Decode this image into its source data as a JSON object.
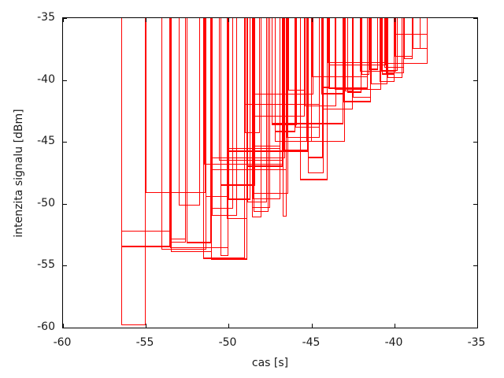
{
  "chart_data": {
    "type": "bar",
    "style": "open red boxes (gnuplot 'boxes'), each box spans a time interval and extends from the top of the plot down to its signal value",
    "title": "",
    "xlabel": "cas [s]",
    "ylabel": "intenzita signalu [dBm]",
    "xlim": [
      -60,
      -35
    ],
    "ylim": [
      -60,
      -35
    ],
    "x_ticks": [
      -60,
      -55,
      -50,
      -45,
      -40,
      -35
    ],
    "y_ticks": [
      -35,
      -40,
      -45,
      -50,
      -55,
      -60
    ],
    "grid": false,
    "legend": "none",
    "line_color": "#ff0000",
    "axis_color": "#000000",
    "background": "#ffffff",
    "box_format": [
      "t_start_s",
      "t_end_s",
      "signal_dbm",
      "thick_flag"
    ],
    "boxes": [
      [
        -56.5,
        -55.03,
        -59.82,
        0
      ],
      [
        -56.5,
        -53.55,
        -53.5,
        1
      ],
      [
        -56.5,
        -53.5,
        -52.25,
        0
      ],
      [
        -55.03,
        -51.4,
        -49.15,
        0
      ],
      [
        -53.55,
        -50.0,
        -53.6,
        0
      ],
      [
        -54.05,
        -51.35,
        -53.7,
        0
      ],
      [
        -53.5,
        -52.6,
        -52.85,
        0
      ],
      [
        -53.5,
        -52.6,
        -53.1,
        0
      ],
      [
        -53.5,
        -51.0,
        -53.87,
        0
      ],
      [
        -53.0,
        -51.75,
        -50.17,
        0
      ],
      [
        -52.55,
        -51.05,
        -53.22,
        1
      ],
      [
        -51.55,
        -49.0,
        -54.45,
        1
      ],
      [
        -51.05,
        -48.9,
        -54.5,
        1
      ],
      [
        -51.4,
        -50.0,
        -49.42,
        0
      ],
      [
        -51.0,
        -49.75,
        -50.37,
        0
      ],
      [
        -51.0,
        -49.5,
        -50.95,
        0
      ],
      [
        -50.5,
        -50.0,
        -54.2,
        0
      ],
      [
        -50.5,
        -48.4,
        -48.57,
        1
      ],
      [
        -50.0,
        -48.7,
        -49.7,
        1
      ],
      [
        -48.9,
        -47.7,
        -49.9,
        0
      ],
      [
        -48.5,
        -47.6,
        -50.62,
        0
      ],
      [
        -50.1,
        -48.9,
        -51.2,
        0
      ],
      [
        -48.6,
        -48.0,
        -51.1,
        0
      ],
      [
        -48.6,
        -47.5,
        -50.35,
        0
      ],
      [
        -48.55,
        -46.9,
        -49.65,
        0
      ],
      [
        -48.6,
        -46.4,
        -49.2,
        0
      ],
      [
        -51.5,
        -46.75,
        -46.85,
        0
      ],
      [
        -50.0,
        -46.9,
        -45.55,
        0
      ],
      [
        -50.0,
        -45.2,
        -45.8,
        1
      ],
      [
        -51.0,
        -46.6,
        -46.3,
        0
      ],
      [
        -50.6,
        -46.7,
        -46.52,
        0
      ],
      [
        -48.9,
        -46.75,
        -47.05,
        1
      ],
      [
        -51.0,
        -46.5,
        -47.28,
        0
      ],
      [
        -49.0,
        -48.1,
        -44.3,
        0
      ],
      [
        -48.6,
        -46.9,
        -45.4,
        0
      ],
      [
        -48.6,
        -44.9,
        -41.2,
        0
      ],
      [
        -49.0,
        -44.5,
        -42.0,
        0
      ],
      [
        -48.6,
        -45.4,
        -42.95,
        0
      ],
      [
        -47.4,
        -43.1,
        -43.57,
        1
      ],
      [
        -47.4,
        -45.9,
        -43.67,
        0
      ],
      [
        -47.2,
        -46.0,
        -44.2,
        1
      ],
      [
        -47.2,
        -45.0,
        -44.96,
        0
      ],
      [
        -46.75,
        -46.5,
        -51.05,
        0
      ],
      [
        -46.7,
        -45.2,
        -45.72,
        1
      ],
      [
        -46.4,
        -45.4,
        -40.85,
        0
      ],
      [
        -46.5,
        -44.5,
        -44.7,
        0
      ],
      [
        -46.0,
        -44.5,
        -43.85,
        0
      ],
      [
        -45.7,
        -44.05,
        -48.1,
        1
      ],
      [
        -45.2,
        -44.3,
        -46.3,
        1
      ],
      [
        -45.2,
        -44.25,
        -47.5,
        0
      ],
      [
        -45.3,
        -43.0,
        -45.0,
        0
      ],
      [
        -45.4,
        -43.5,
        -42.1,
        0
      ],
      [
        -45.0,
        -41.6,
        -39.78,
        0
      ],
      [
        -44.4,
        -43.0,
        -41.15,
        1
      ],
      [
        -44.4,
        -43.9,
        -40.68,
        1
      ],
      [
        -44.0,
        -41.6,
        -40.75,
        1
      ],
      [
        -44.3,
        -42.5,
        -42.35,
        0
      ],
      [
        -44.05,
        -40.55,
        -38.62,
        0
      ],
      [
        -44.0,
        -40.5,
        -38.8,
        0
      ],
      [
        -43.6,
        -40.8,
        -40.77,
        0
      ],
      [
        -43.1,
        -41.4,
        -41.83,
        1
      ],
      [
        -42.85,
        -42.0,
        -41.03,
        1
      ],
      [
        -43.0,
        -42.5,
        -40.9,
        0
      ],
      [
        -42.5,
        -41.4,
        -41.45,
        0
      ],
      [
        -42.1,
        -39.9,
        -39.3,
        0
      ],
      [
        -42.0,
        -41.5,
        -39.55,
        0
      ],
      [
        -41.5,
        -41.0,
        -39.18,
        1
      ],
      [
        -41.4,
        -40.4,
        -40.35,
        0
      ],
      [
        -40.75,
        -40.0,
        -39.57,
        1
      ],
      [
        -40.9,
        -39.97,
        -40.15,
        0
      ],
      [
        -40.6,
        -39.4,
        -39.0,
        0
      ],
      [
        -40.5,
        -39.4,
        -39.45,
        0
      ],
      [
        -40.8,
        -39.8,
        -39.29,
        0
      ],
      [
        -40.4,
        -39.5,
        -39.83,
        0
      ],
      [
        -40.4,
        -38.0,
        -38.7,
        0
      ],
      [
        -40.0,
        -38.9,
        -38.12,
        0
      ],
      [
        -39.4,
        -38.9,
        -38.3,
        0
      ],
      [
        -38.9,
        -38.4,
        -37.45,
        0
      ],
      [
        -38.45,
        -38.0,
        -37.5,
        0
      ],
      [
        -40.0,
        -38.0,
        -36.35,
        0
      ]
    ]
  }
}
